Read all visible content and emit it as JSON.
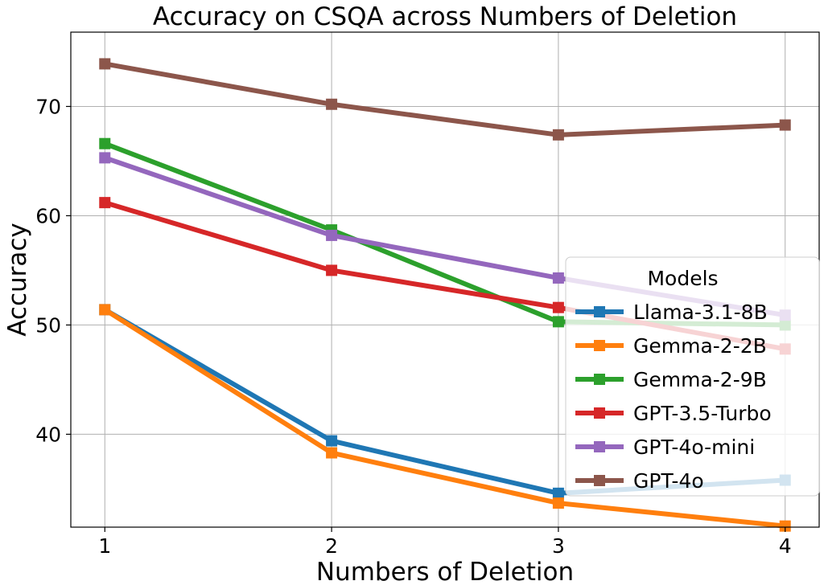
{
  "chart_data": {
    "type": "line",
    "title": "Accuracy on CSQA across Numbers of Deletion",
    "xlabel": "Numbers of Deletion",
    "ylabel": "Accuracy",
    "x": [
      1,
      2,
      3,
      4
    ],
    "x_ticks": [
      "1",
      "2",
      "3",
      "4"
    ],
    "y_ticks": [
      "40",
      "50",
      "60",
      "70"
    ],
    "xlim": [
      0.85,
      4.15
    ],
    "ylim": [
      31.5,
      76.8
    ],
    "grid": true,
    "legend_title": "Models",
    "legend_position": "lower-right",
    "series": [
      {
        "name": "Llama-3.1-8B",
        "color": "#1f77b4",
        "values": [
          51.4,
          39.4,
          34.6,
          35.8
        ]
      },
      {
        "name": "Gemma-2-2B",
        "color": "#ff7f0e",
        "values": [
          51.4,
          38.3,
          33.7,
          31.6
        ]
      },
      {
        "name": "Gemma-2-9B",
        "color": "#2ca02c",
        "values": [
          66.6,
          58.7,
          50.3,
          50.0
        ]
      },
      {
        "name": "GPT-3.5-Turbo",
        "color": "#d62728",
        "values": [
          61.2,
          55.0,
          51.6,
          47.8
        ]
      },
      {
        "name": "GPT-4o-mini",
        "color": "#9467bd",
        "values": [
          65.3,
          58.2,
          54.3,
          50.9
        ]
      },
      {
        "name": "GPT-4o",
        "color": "#8c564b",
        "values": [
          73.9,
          70.2,
          67.4,
          68.3
        ]
      }
    ]
  }
}
